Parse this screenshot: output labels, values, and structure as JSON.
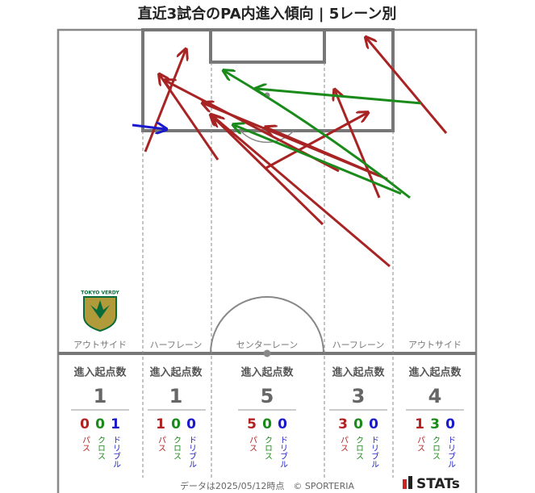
{
  "title": "直近3試合のPA内進入傾向 | 5レーン別",
  "team_logo": "TOKYO VERDY",
  "lanes": [
    {
      "label": "アウトサイド",
      "header": "進入起点数",
      "count": 1,
      "breakdown": [
        {
          "value": 0,
          "label": "パス"
        },
        {
          "value": 0,
          "label": "クロス"
        },
        {
          "value": 1,
          "label": "ドリブル"
        }
      ]
    },
    {
      "label": "ハーフレーン",
      "header": "進入起点数",
      "count": 1,
      "breakdown": [
        {
          "value": 1,
          "label": "パス"
        },
        {
          "value": 0,
          "label": "クロス"
        },
        {
          "value": 0,
          "label": "ドリブル"
        }
      ]
    },
    {
      "label": "センターレーン",
      "header": "進入起点数",
      "count": 5,
      "breakdown": [
        {
          "value": 5,
          "label": "パス"
        },
        {
          "value": 0,
          "label": "クロス"
        },
        {
          "value": 0,
          "label": "ドリブル"
        }
      ]
    },
    {
      "label": "ハーフレーン",
      "header": "進入起点数",
      "count": 3,
      "breakdown": [
        {
          "value": 3,
          "label": "パス"
        },
        {
          "value": 0,
          "label": "クロス"
        },
        {
          "value": 0,
          "label": "ドリブル"
        }
      ]
    },
    {
      "label": "アウトサイド",
      "header": "進入起点数",
      "count": 4,
      "breakdown": [
        {
          "value": 1,
          "label": "パス"
        },
        {
          "value": 3,
          "label": "クロス"
        },
        {
          "value": 0,
          "label": "ドリブル"
        }
      ]
    }
  ],
  "footer": "データは2025/05/12時点　© SPORTERIA",
  "brand": "STATs"
}
